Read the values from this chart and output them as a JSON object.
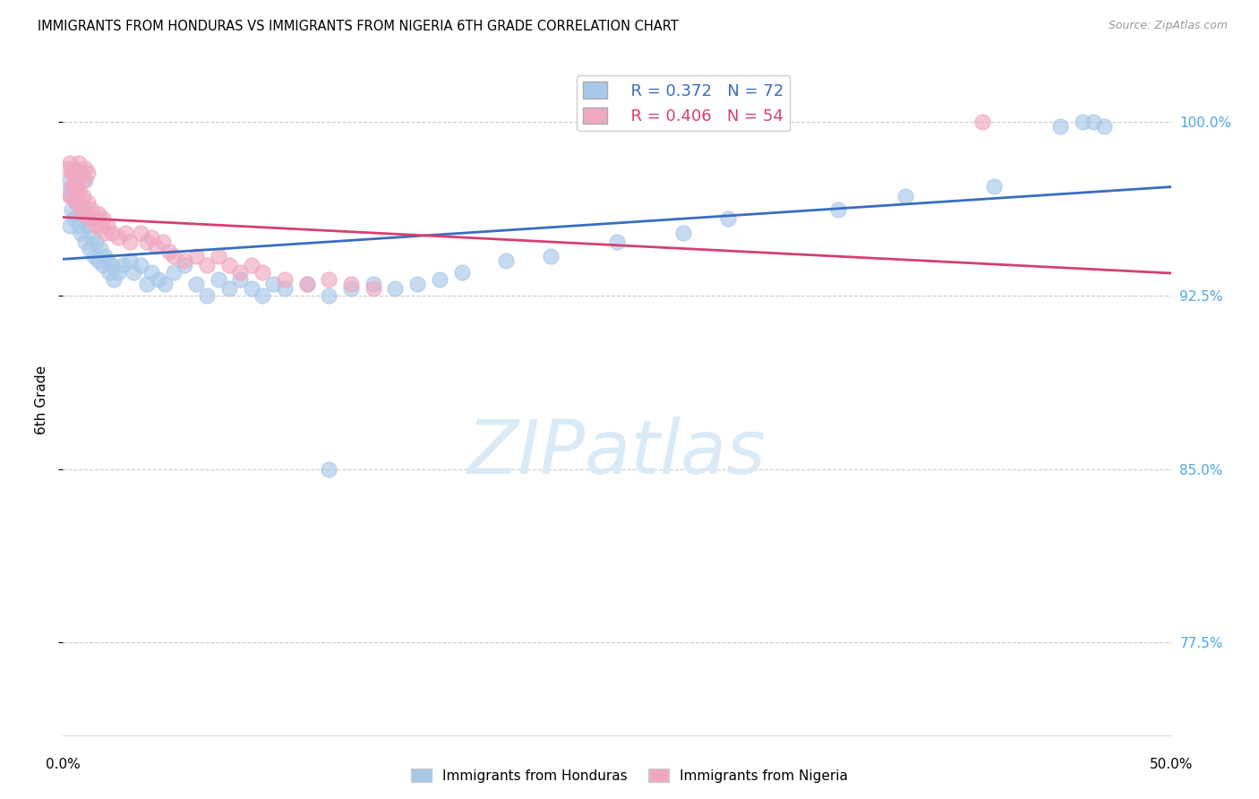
{
  "title": "IMMIGRANTS FROM HONDURAS VS IMMIGRANTS FROM NIGERIA 6TH GRADE CORRELATION CHART",
  "source": "Source: ZipAtlas.com",
  "ylabel": "6th Grade",
  "y_ticks": [
    0.775,
    0.85,
    0.925,
    1.0
  ],
  "y_tick_labels": [
    "77.5%",
    "85.0%",
    "92.5%",
    "100.0%"
  ],
  "xlim": [
    0.0,
    0.5
  ],
  "ylim": [
    0.735,
    1.025
  ],
  "legend_blue_R": "R = 0.372",
  "legend_blue_N": "N = 72",
  "legend_pink_R": "R = 0.406",
  "legend_pink_N": "N = 54",
  "blue_scatter_x": [
    0.002,
    0.003,
    0.004,
    0.005,
    0.006,
    0.007,
    0.008,
    0.009,
    0.01,
    0.011,
    0.003,
    0.004,
    0.005,
    0.006,
    0.007,
    0.008,
    0.009,
    0.01,
    0.011,
    0.012,
    0.013,
    0.014,
    0.015,
    0.016,
    0.017,
    0.018,
    0.019,
    0.02,
    0.021,
    0.022,
    0.023,
    0.025,
    0.027,
    0.03,
    0.032,
    0.035,
    0.038,
    0.04,
    0.043,
    0.046,
    0.05,
    0.055,
    0.06,
    0.065,
    0.07,
    0.075,
    0.08,
    0.085,
    0.09,
    0.095,
    0.1,
    0.11,
    0.12,
    0.13,
    0.14,
    0.15,
    0.16,
    0.17,
    0.18,
    0.2,
    0.22,
    0.25,
    0.28,
    0.3,
    0.35,
    0.38,
    0.42,
    0.45,
    0.46,
    0.465,
    0.47,
    0.12
  ],
  "blue_scatter_y": [
    0.97,
    0.975,
    0.968,
    0.972,
    0.965,
    0.978,
    0.96,
    0.963,
    0.975,
    0.958,
    0.955,
    0.962,
    0.958,
    0.97,
    0.955,
    0.952,
    0.96,
    0.948,
    0.955,
    0.945,
    0.95,
    0.942,
    0.948,
    0.94,
    0.945,
    0.938,
    0.942,
    0.94,
    0.935,
    0.938,
    0.932,
    0.935,
    0.938,
    0.94,
    0.935,
    0.938,
    0.93,
    0.935,
    0.932,
    0.93,
    0.935,
    0.938,
    0.93,
    0.925,
    0.932,
    0.928,
    0.932,
    0.928,
    0.925,
    0.93,
    0.928,
    0.93,
    0.925,
    0.928,
    0.93,
    0.928,
    0.93,
    0.932,
    0.935,
    0.94,
    0.942,
    0.948,
    0.952,
    0.958,
    0.962,
    0.968,
    0.972,
    0.998,
    1.0,
    1.0,
    0.998,
    0.85
  ],
  "pink_scatter_x": [
    0.002,
    0.003,
    0.004,
    0.005,
    0.006,
    0.007,
    0.008,
    0.009,
    0.01,
    0.011,
    0.003,
    0.004,
    0.005,
    0.006,
    0.007,
    0.008,
    0.009,
    0.01,
    0.011,
    0.012,
    0.013,
    0.014,
    0.015,
    0.016,
    0.017,
    0.018,
    0.019,
    0.02,
    0.022,
    0.025,
    0.028,
    0.03,
    0.035,
    0.038,
    0.04,
    0.042,
    0.045,
    0.048,
    0.05,
    0.055,
    0.06,
    0.065,
    0.07,
    0.075,
    0.08,
    0.085,
    0.09,
    0.1,
    0.11,
    0.12,
    0.13,
    0.14,
    0.415,
    0.005
  ],
  "pink_scatter_y": [
    0.98,
    0.982,
    0.978,
    0.98,
    0.975,
    0.982,
    0.978,
    0.975,
    0.98,
    0.978,
    0.968,
    0.972,
    0.968,
    0.965,
    0.97,
    0.962,
    0.968,
    0.96,
    0.965,
    0.958,
    0.962,
    0.958,
    0.955,
    0.96,
    0.955,
    0.958,
    0.952,
    0.955,
    0.952,
    0.95,
    0.952,
    0.948,
    0.952,
    0.948,
    0.95,
    0.946,
    0.948,
    0.944,
    0.942,
    0.94,
    0.942,
    0.938,
    0.942,
    0.938,
    0.935,
    0.938,
    0.935,
    0.932,
    0.93,
    0.932,
    0.93,
    0.928,
    1.0,
    0.972
  ],
  "blue_color": "#a8c8e8",
  "pink_color": "#f0a8c0",
  "blue_line_color": "#3a6dbf",
  "pink_line_color": "#d44070",
  "grid_color": "#cccccc",
  "right_axis_color": "#4da6e8",
  "background_color": "#ffffff",
  "watermark_color": "#daeaf7",
  "watermark_text": "ZIPatlas"
}
